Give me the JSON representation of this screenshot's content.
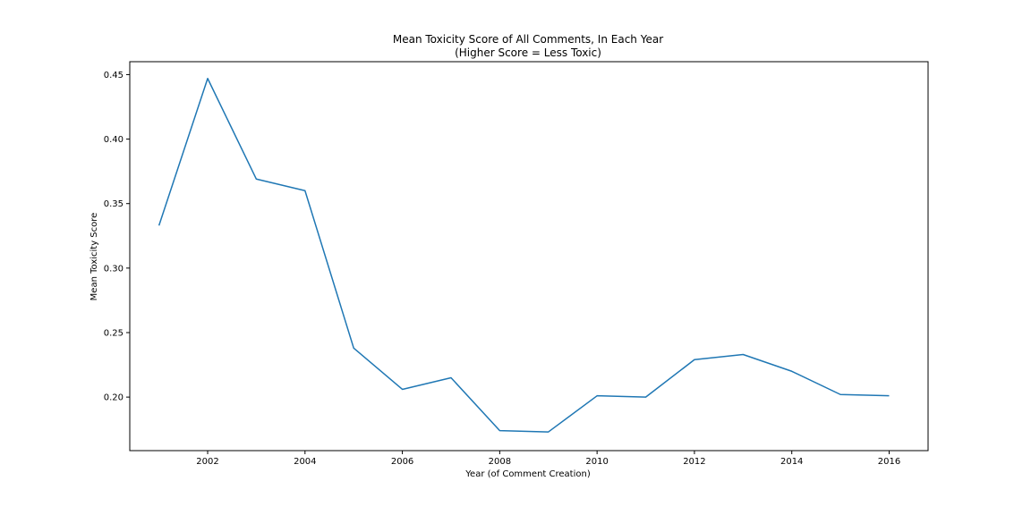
{
  "chart_data": {
    "type": "line",
    "title": "Mean Toxicity Score of All Comments, In Each Year",
    "subtitle": "(Higher Score = Less Toxic)",
    "xlabel": "Year (of Comment Creation)",
    "ylabel": "Mean Toxicity Score",
    "xlim": [
      2000.4,
      2016.8
    ],
    "ylim": [
      0.1585,
      0.46
    ],
    "x_ticks": [
      2002,
      2004,
      2006,
      2008,
      2010,
      2012,
      2014,
      2016
    ],
    "x_tick_labels": [
      "2002",
      "2004",
      "2006",
      "2008",
      "2010",
      "2012",
      "2014",
      "2016"
    ],
    "y_ticks": [
      0.2,
      0.25,
      0.3,
      0.35,
      0.4,
      0.45
    ],
    "y_tick_labels": [
      "0.20",
      "0.25",
      "0.30",
      "0.35",
      "0.40",
      "0.45"
    ],
    "grid": false,
    "line_color": "#1f77b4",
    "series": [
      {
        "x": [
          2001,
          2002,
          2003,
          2004,
          2005,
          2006,
          2007,
          2008,
          2009,
          2010,
          2011,
          2012,
          2013,
          2014,
          2015,
          2016
        ],
        "values": [
          0.333,
          0.447,
          0.369,
          0.36,
          0.238,
          0.206,
          0.215,
          0.174,
          0.173,
          0.201,
          0.2,
          0.229,
          0.233,
          0.22,
          0.202,
          0.201
        ]
      }
    ]
  }
}
